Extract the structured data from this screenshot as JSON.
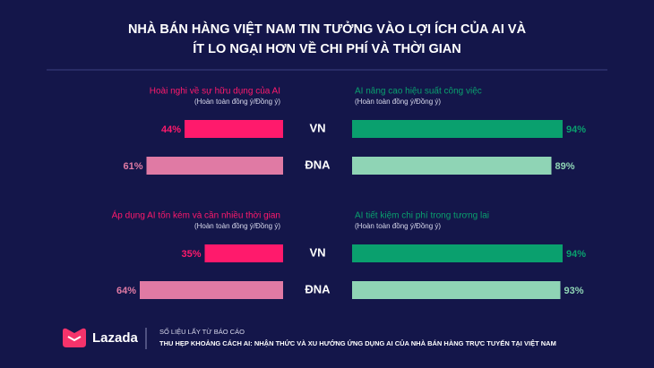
{
  "header": {
    "title": [
      "NHÀ BÁN HÀNG VIỆT NAM TIN TƯỞNG VÀO LỢI ÍCH CỦA AI VÀ",
      "ÍT LO NGẠI HƠN VỀ CHI PHÍ VÀ THỜI GIAN"
    ]
  },
  "chart_data": [
    {
      "type": "bar",
      "title": "Hoài nghi về sự hữu dụng của AI",
      "subtitle": "(Hoàn toàn đồng ý/Đồng ý)",
      "categories": [
        "VN",
        "ĐNA"
      ],
      "values": [
        44,
        61
      ],
      "value_labels": [
        "44%",
        "61%"
      ],
      "colors": [
        "#ff1a6c",
        "#e07aa4"
      ],
      "xlim": [
        0,
        100
      ],
      "bar_anchor": "right"
    },
    {
      "type": "bar",
      "title": "AI nâng cao hiệu suất công việc",
      "subtitle": "(Hoàn toàn đồng ý/Đồng ý)",
      "values": [
        94,
        89
      ],
      "value_labels": [
        "94%",
        "89%"
      ],
      "colors": [
        "#0aa06e",
        "#8fd4b5"
      ],
      "xlim": [
        0,
        100
      ],
      "bar_anchor": "left"
    },
    {
      "type": "bar",
      "title": "Áp dụng AI tốn kém và cần nhiều thời gian",
      "subtitle": "(Hoàn toàn đồng ý/Đồng ý)",
      "categories": [
        "VN",
        "ĐNA"
      ],
      "values": [
        35,
        64
      ],
      "value_labels": [
        "35%",
        "64%"
      ],
      "colors": [
        "#ff1a6c",
        "#e07aa4"
      ],
      "xlim": [
        0,
        100
      ],
      "bar_anchor": "right"
    },
    {
      "type": "bar",
      "title": "AI tiết kiệm chi phí trong tương lai",
      "subtitle": "(Hoàn toàn đồng ý/Đồng ý)",
      "values": [
        94,
        93
      ],
      "value_labels": [
        "94%",
        "93%"
      ],
      "colors": [
        "#0aa06e",
        "#8fd4b5"
      ],
      "xlim": [
        0,
        100
      ],
      "bar_anchor": "left"
    }
  ],
  "footer": {
    "brand": "Lazada",
    "source_label": "SỐ LIỆU LẤY TỪ BÁO CÁO",
    "source_title": "THU HẸP KHOẢNG CÁCH AI: NHẬN THỨC VÀ XU HƯỚNG ỨNG DỤNG AI CỦA NHÀ BÁN HÀNG TRỰC TUYẾN TẠI VIỆT NAM"
  }
}
